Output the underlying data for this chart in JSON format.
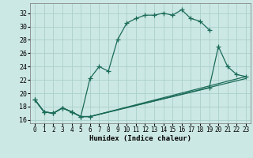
{
  "xlabel": "Humidex (Indice chaleur)",
  "bg_color": "#cce8e4",
  "grid_color": "#aad0cc",
  "line_color": "#1a6b58",
  "xlim": [
    -0.5,
    23.5
  ],
  "ylim": [
    15.5,
    33.5
  ],
  "xticks": [
    0,
    1,
    2,
    3,
    4,
    5,
    6,
    7,
    8,
    9,
    10,
    11,
    12,
    13,
    14,
    15,
    16,
    17,
    18,
    19,
    20,
    21,
    22,
    23
  ],
  "yticks": [
    16,
    18,
    20,
    22,
    24,
    26,
    28,
    30,
    32
  ],
  "curve1_x": [
    0,
    1,
    2,
    3,
    4,
    5,
    6,
    7,
    8,
    9,
    10,
    11,
    12,
    13,
    14,
    15,
    16,
    17,
    18,
    19
  ],
  "curve1_y": [
    19.0,
    17.2,
    17.0,
    17.8,
    17.2,
    16.5,
    22.2,
    24.0,
    23.3,
    28.0,
    30.5,
    31.2,
    31.7,
    31.7,
    32.0,
    31.7,
    32.5,
    31.2,
    30.8,
    29.5
  ],
  "curve2_x": [
    0,
    1,
    2,
    3,
    4,
    5,
    6,
    19,
    20,
    21,
    22,
    23
  ],
  "curve2_y": [
    19.0,
    17.2,
    17.0,
    17.8,
    17.2,
    16.5,
    16.5,
    20.8,
    27.0,
    24.0,
    22.8,
    22.5
  ],
  "line3_x": [
    0,
    1,
    2,
    3,
    4,
    5,
    6,
    23
  ],
  "line3_y": [
    19.0,
    17.2,
    17.0,
    17.8,
    17.2,
    16.5,
    16.5,
    22.5
  ],
  "line4_x": [
    0,
    1,
    2,
    3,
    4,
    5,
    6,
    23
  ],
  "line4_y": [
    19.0,
    17.2,
    17.0,
    17.8,
    17.2,
    16.5,
    16.5,
    22.2
  ],
  "xlabel_fontsize": 6.5,
  "tick_fontsize": 5.5
}
